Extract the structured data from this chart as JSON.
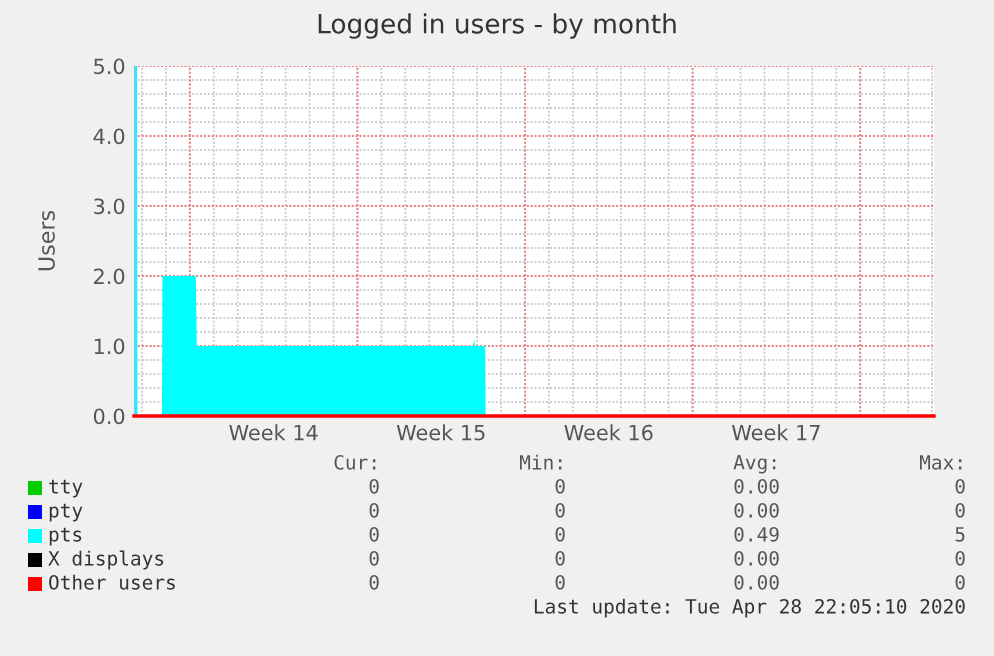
{
  "chart_data": {
    "type": "area",
    "title": "Logged in users - by month",
    "ylabel": "Users",
    "xlim": [
      "2020-03-27T16:00",
      "2020-04-30T02:00"
    ],
    "ylim": [
      0,
      5
    ],
    "yticks": [
      {
        "value": 0,
        "label": "0.0"
      },
      {
        "value": 1,
        "label": "1.0"
      },
      {
        "value": 2,
        "label": "2.0"
      },
      {
        "value": 3,
        "label": "3.0"
      },
      {
        "value": 4,
        "label": "4.0"
      },
      {
        "value": 5,
        "label": "5.0"
      }
    ],
    "xticks": [
      {
        "value": "2020-03-30",
        "label": null
      },
      {
        "value": "2020-04-02T12:00",
        "label": "Week 14"
      },
      {
        "value": "2020-04-06",
        "label": null
      },
      {
        "value": "2020-04-09T12:00",
        "label": "Week 15"
      },
      {
        "value": "2020-04-13",
        "label": null
      },
      {
        "value": "2020-04-16T12:00",
        "label": "Week 16"
      },
      {
        "value": "2020-04-20",
        "label": null
      },
      {
        "value": "2020-04-23T12:00",
        "label": "Week 17"
      },
      {
        "value": "2020-04-27",
        "label": null
      }
    ],
    "grid": true,
    "legend": "bottom",
    "series": [
      {
        "name": "tty",
        "color": "#00cc00",
        "type": "line"
      },
      {
        "name": "pty",
        "color": "#0000ff",
        "type": "line"
      },
      {
        "name": "pts",
        "color": "#00ffff",
        "x": [
          "2020-03-27T16:00",
          "2020-03-27T19:00",
          "2020-03-27T19:30",
          "2020-03-28T20:00",
          "2020-03-28T20:30",
          "2020-03-30T06:00",
          "2020-03-30T07:00",
          "2020-04-10T20:00",
          "2020-04-10T21:00",
          "2020-04-10T22:00",
          "2020-04-11T08:00",
          "2020-04-11T08:30",
          "2020-04-30T02:00"
        ],
        "values": [
          5,
          5,
          0,
          0,
          2,
          2,
          1,
          1,
          1.1,
          1,
          1,
          0,
          0
        ]
      },
      {
        "name": "X displays",
        "color": "#000000",
        "type": "line"
      },
      {
        "name": "Other users",
        "color": "#ff0000",
        "type": "line",
        "x": [
          "2020-03-27T16:00",
          "2020-04-30T02:00"
        ],
        "values": [
          0,
          0
        ]
      }
    ],
    "annotations": [
      "Cur:",
      "Min:",
      "Avg:",
      "Max:",
      "0",
      "0",
      "0.00",
      "0",
      "0",
      "0",
      "0.00",
      "0",
      "0",
      "0",
      "0.49",
      "5",
      "0",
      "0",
      "0.00",
      "0",
      "0",
      "0",
      "0.00",
      "0",
      "Last update: Tue Apr 28 22:05:10 2020"
    ]
  }
}
